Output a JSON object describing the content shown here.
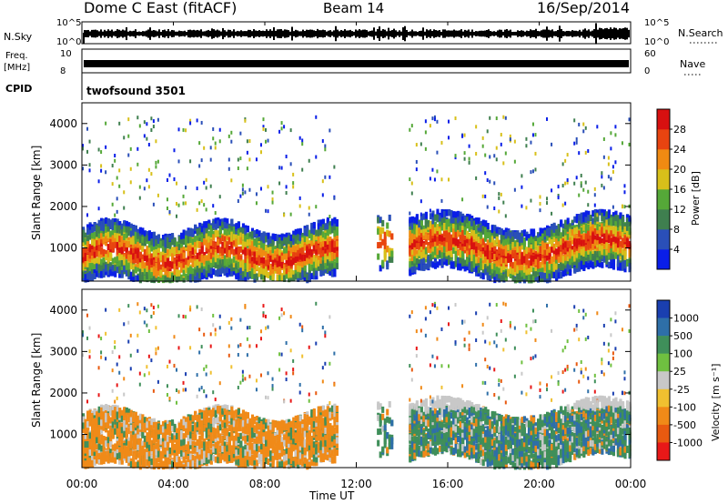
{
  "header": {
    "title": "Dome C East (fitACF)",
    "beam": "Beam 14",
    "date": "16/Sep/2014"
  },
  "strip_labels": {
    "nsky": "N.Sky",
    "nsearch": "N.Search",
    "freq": "Freq.",
    "freq_unit": "[MHz]",
    "nave": "Nave",
    "cpid": "CPID",
    "cpid_value": "twofsound 3501",
    "nsky_ticks": [
      "10^5",
      "10^0"
    ],
    "nsearch_ticks": [
      "10^5",
      "10^0"
    ],
    "freq_ticks": [
      "10",
      "8"
    ],
    "nave_ticks": [
      "60",
      "0"
    ]
  },
  "chart_data": [
    {
      "type": "heatmap",
      "name": "power",
      "ylabel": "Slant Range [km]",
      "xlabel": "Time UT",
      "ylim": [
        200,
        4500
      ],
      "y_ticks": [
        1000,
        2000,
        3000,
        4000
      ],
      "x_ticks": [
        "00:00",
        "04:00",
        "08:00",
        "12:00",
        "16:00",
        "20:00",
        "00:00"
      ],
      "colorbar_label": "Power [dB]",
      "colorbar_ticks": [
        4,
        8,
        12,
        16,
        20,
        24,
        28
      ],
      "colorbar_colors": [
        "#0a1ee8",
        "#2a4fb8",
        "#3f7f4f",
        "#55a838",
        "#d8c01a",
        "#f08a12",
        "#e84410",
        "#d81010"
      ],
      "description_regions": [
        {
          "t_start": 0.0,
          "t_end": 11.0,
          "range_low": 500,
          "range_high": 1600,
          "peak_range": 900,
          "peak_db": 28
        },
        {
          "t_start": 14.5,
          "t_end": 24.0,
          "range_low": 600,
          "range_high": 1700,
          "peak_range": 1000,
          "peak_db": 26
        }
      ]
    },
    {
      "type": "heatmap",
      "name": "velocity",
      "ylabel": "Slant Range [km]",
      "xlabel": "Time UT",
      "ylim": [
        200,
        4500
      ],
      "y_ticks": [
        1000,
        2000,
        3000,
        4000
      ],
      "x_ticks": [
        "00:00",
        "04:00",
        "08:00",
        "12:00",
        "16:00",
        "20:00",
        "00:00"
      ],
      "colorbar_label": "Velocity [m s⁻¹]",
      "colorbar_ticks": [
        "1000",
        "500",
        "100",
        "25",
        "-25",
        "-100",
        "-500",
        "-1000"
      ],
      "colorbar_colors": [
        "#1a3fb0",
        "#2e6fa8",
        "#3f8f5a",
        "#6fc040",
        "#c8c8c8",
        "#f0c030",
        "#f08a18",
        "#e85a10",
        "#e81818"
      ]
    }
  ]
}
